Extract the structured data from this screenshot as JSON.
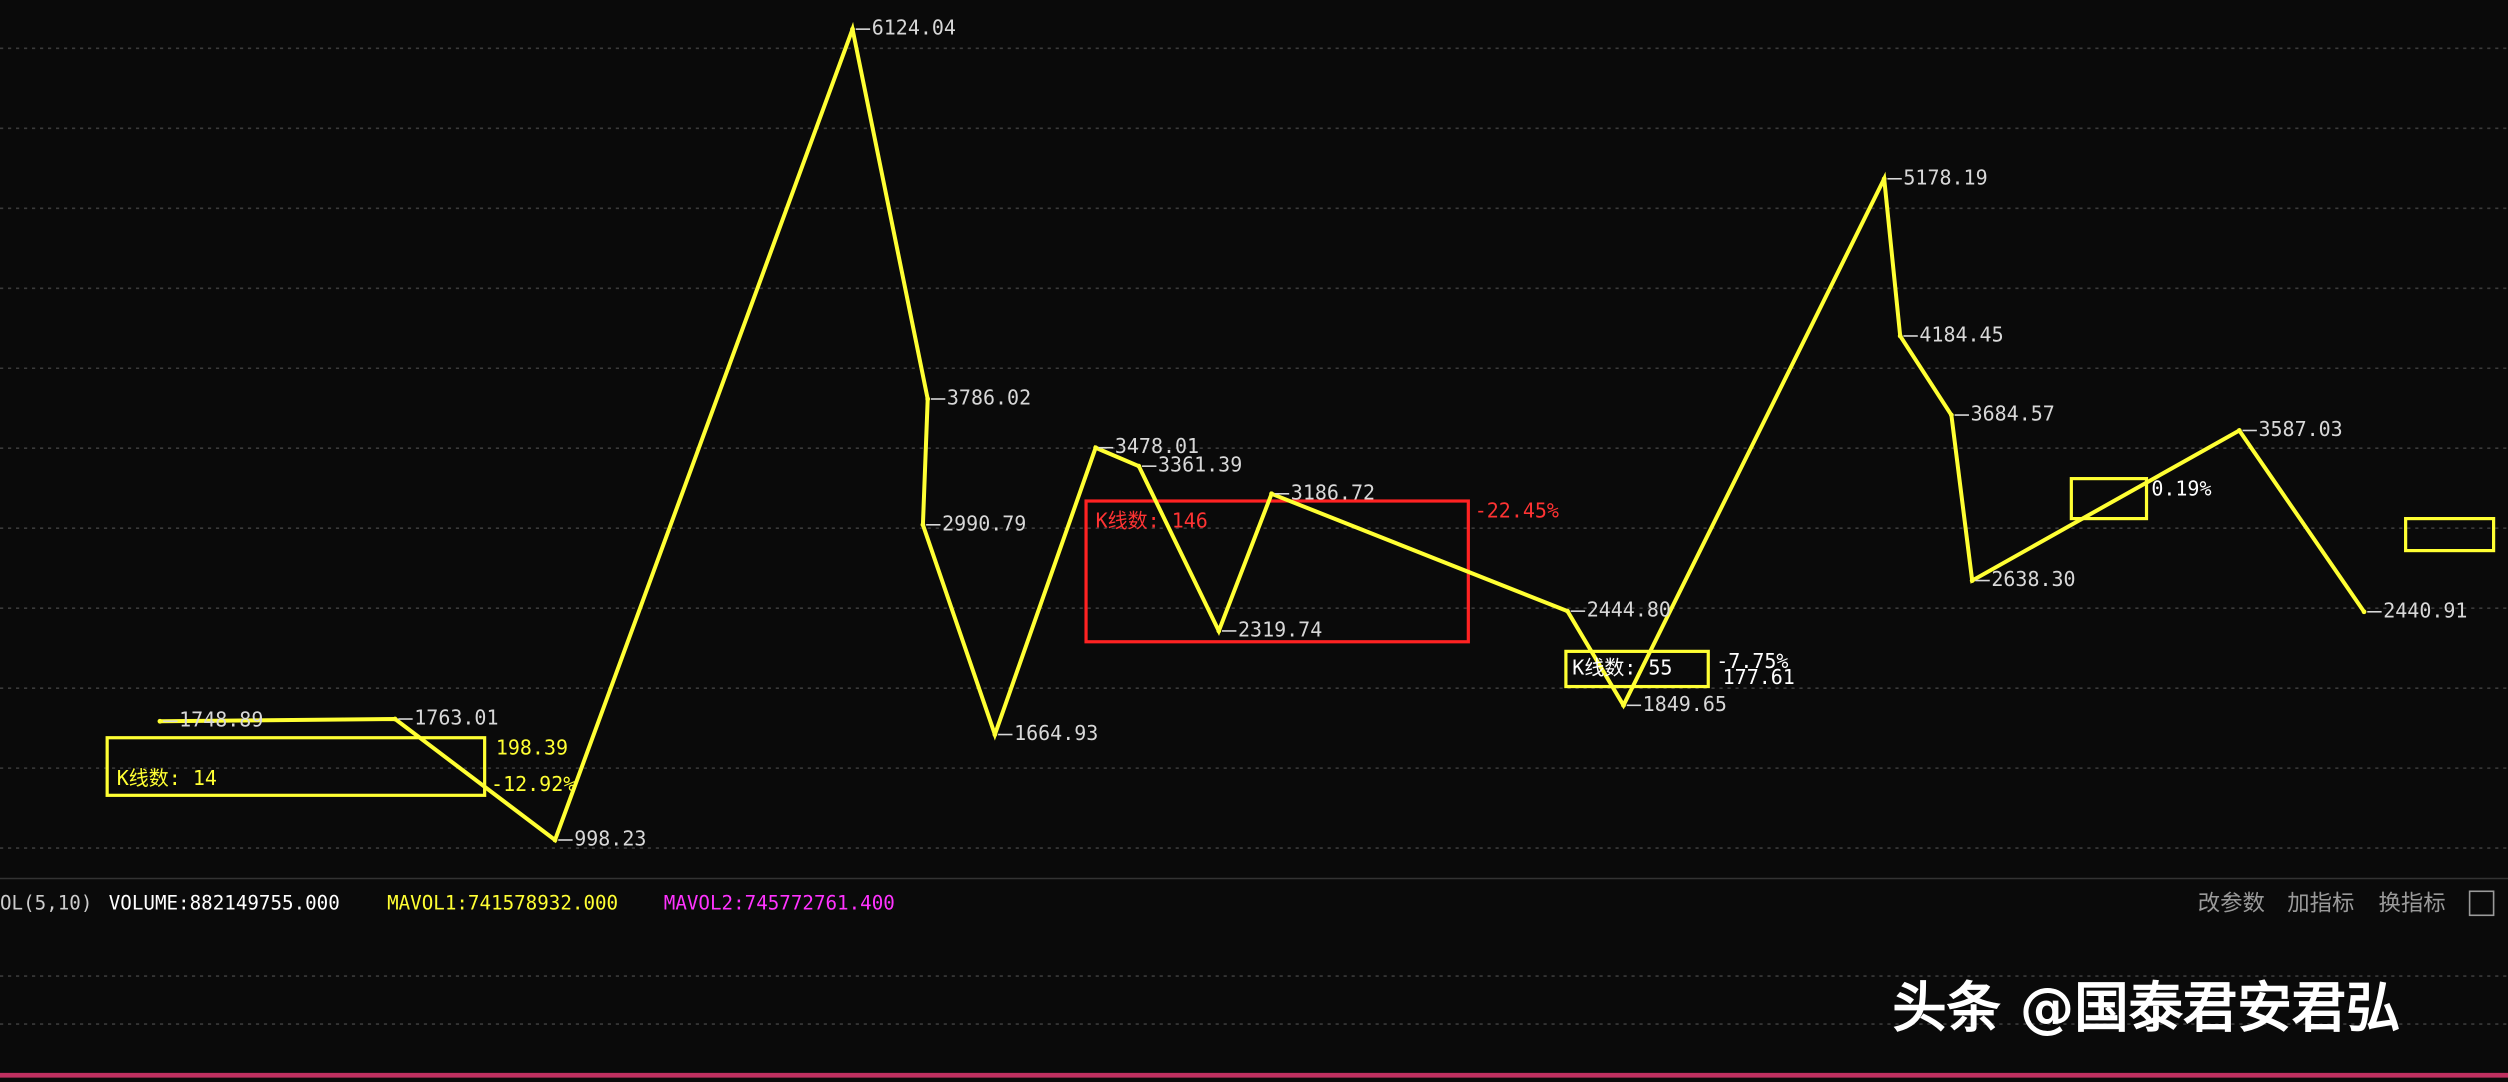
{
  "chart_data": {
    "type": "line",
    "categories": [
      null,
      null,
      null,
      null,
      null,
      null,
      null,
      null,
      null,
      null,
      null,
      null,
      null,
      null,
      null,
      null,
      null,
      null,
      null
    ],
    "values": [
      1748.89,
      1763.01,
      998.23,
      6124.04,
      3786.02,
      2990.79,
      1664.93,
      3478.01,
      3361.39,
      2319.74,
      3186.72,
      2444.8,
      1849.65,
      5178.19,
      4184.45,
      3684.57,
      2638.3,
      3587.03,
      2440.91
    ],
    "value_labels": [
      "1748.89",
      "1763.01",
      "998.23",
      "6124.04",
      "3786.02",
      "2990.79",
      "1664.93",
      "3478.01",
      "3361.39",
      "2319.74",
      "3186.72",
      "2444.80",
      "1849.65",
      "5178.19",
      "4184.45",
      "3684.57",
      "2638.30",
      "3587.03",
      "2440.91"
    ],
    "color": "#ffff33",
    "ylim": [
      765,
      6306
    ],
    "annotations": [
      "-22.45%",
      "-12.92%",
      "198.39",
      "-7.75%",
      "177.61",
      "0.19%",
      "K线数: 146",
      "K线数: 14",
      "K线数: 55"
    ],
    "indicator": {
      "name": "OL(5,10)",
      "volume": "VOLUME:882149755.000",
      "mavol1": "MAVOL1:741578932.000",
      "mavol2": "MAVOL2:745772761.400"
    },
    "buttons": [
      "改参数",
      "加指标",
      "换指标"
    ],
    "watermark": "头条 @国泰君安君弘"
  }
}
